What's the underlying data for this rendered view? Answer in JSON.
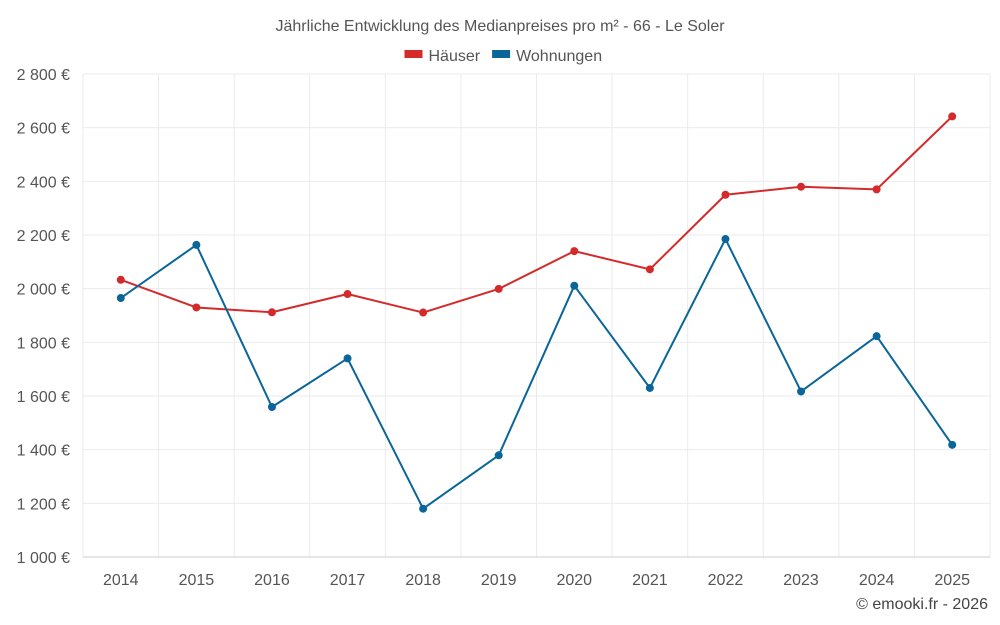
{
  "chart_data": {
    "type": "line",
    "title": "Jährliche Entwicklung des Medianpreises pro m² - 66 - Le Soler",
    "categories": [
      "2014",
      "2015",
      "2016",
      "2017",
      "2018",
      "2019",
      "2020",
      "2021",
      "2022",
      "2023",
      "2024",
      "2025"
    ],
    "series": [
      {
        "name": "Häuser",
        "color": "#d42a2a",
        "values": [
          2033,
          1930,
          1912,
          1980,
          1911,
          1999,
          2140,
          2072,
          2350,
          2380,
          2370,
          2642
        ]
      },
      {
        "name": "Wohnungen",
        "color": "#0a6599",
        "values": [
          1965,
          2163,
          1559,
          1740,
          1180,
          1379,
          2011,
          1630,
          2185,
          1617,
          1823,
          1418
        ]
      }
    ],
    "ylim": [
      1000,
      2800
    ],
    "yticks": [
      1000,
      1200,
      1400,
      1600,
      1800,
      2000,
      2200,
      2400,
      2600,
      2800
    ],
    "ytick_labels": [
      "1 000 €",
      "1 200 €",
      "1 400 €",
      "1 600 €",
      "1 800 €",
      "2 000 €",
      "2 200 €",
      "2 400 €",
      "2 600 €",
      "2 800 €"
    ],
    "xlabel": "",
    "ylabel": "",
    "grid": true,
    "legend_position": "top-center",
    "credit": "© emooki.fr - 2026"
  }
}
